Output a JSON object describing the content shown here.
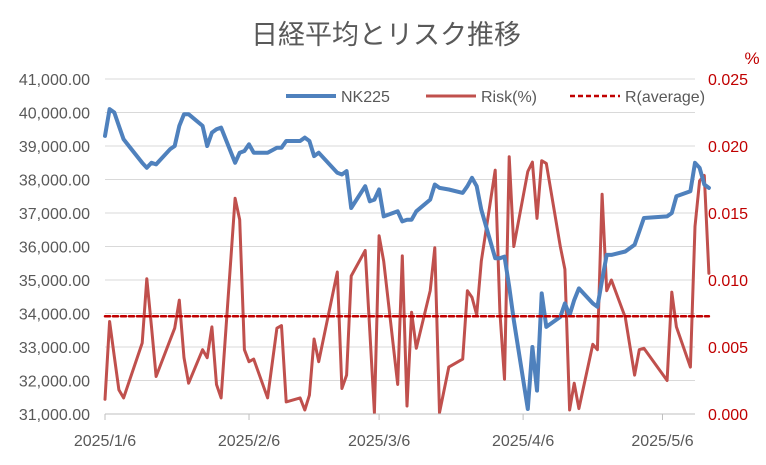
{
  "chart_data": {
    "type": "line",
    "title": "日経平均とリスク推移",
    "right_axis_unit": "%",
    "x_tick_labels": [
      "2025/1/6",
      "2025/2/6",
      "2025/3/6",
      "2025/4/6",
      "2025/5/6"
    ],
    "x_tick_dates": [
      "2025-01-06",
      "2025-02-06",
      "2025-03-06",
      "2025-04-06",
      "2025-05-06"
    ],
    "x_range": [
      "2025-01-06",
      "2025-05-13"
    ],
    "left_axis": {
      "min": 31000,
      "max": 41000,
      "step": 1000,
      "tick_labels": [
        "31,000.00",
        "32,000.00",
        "33,000.00",
        "34,000.00",
        "35,000.00",
        "36,000.00",
        "37,000.00",
        "38,000.00",
        "39,000.00",
        "40,000.00",
        "41,000.00"
      ]
    },
    "right_axis": {
      "min": 0,
      "max": 0.025,
      "step": 0.005,
      "tick_labels": [
        "0.000",
        "0.005",
        "0.010",
        "0.015",
        "0.020",
        "0.025"
      ]
    },
    "gridlines": true,
    "legend_position": "top-right",
    "colors": {
      "nk225": "#4f81bd",
      "risk": "#c0504d",
      "average": "#c00000",
      "right_axis": "#c00000"
    },
    "series": [
      {
        "name": "NK225",
        "axis": "left",
        "points": [
          [
            "2025-01-06",
            39300
          ],
          [
            "2025-01-07",
            40100
          ],
          [
            "2025-01-08",
            40000
          ],
          [
            "2025-01-09",
            39600
          ],
          [
            "2025-01-10",
            39200
          ],
          [
            "2025-01-14",
            38500
          ],
          [
            "2025-01-15",
            38350
          ],
          [
            "2025-01-16",
            38500
          ],
          [
            "2025-01-17",
            38450
          ],
          [
            "2025-01-20",
            38900
          ],
          [
            "2025-01-21",
            39000
          ],
          [
            "2025-01-22",
            39600
          ],
          [
            "2025-01-23",
            39950
          ],
          [
            "2025-01-24",
            39950
          ],
          [
            "2025-01-27",
            39600
          ],
          [
            "2025-01-28",
            39000
          ],
          [
            "2025-01-29",
            39400
          ],
          [
            "2025-01-30",
            39500
          ],
          [
            "2025-01-31",
            39550
          ],
          [
            "2025-02-03",
            38500
          ],
          [
            "2025-02-04",
            38800
          ],
          [
            "2025-02-05",
            38850
          ],
          [
            "2025-02-06",
            39050
          ],
          [
            "2025-02-07",
            38800
          ],
          [
            "2025-02-10",
            38800
          ],
          [
            "2025-02-12",
            38950
          ],
          [
            "2025-02-13",
            38950
          ],
          [
            "2025-02-14",
            39150
          ],
          [
            "2025-02-17",
            39150
          ],
          [
            "2025-02-18",
            39250
          ],
          [
            "2025-02-19",
            39150
          ],
          [
            "2025-02-20",
            38700
          ],
          [
            "2025-02-21",
            38800
          ],
          [
            "2025-02-25",
            38200
          ],
          [
            "2025-02-26",
            38150
          ],
          [
            "2025-02-27",
            38250
          ],
          [
            "2025-02-28",
            37150
          ],
          [
            "2025-03-03",
            37800
          ],
          [
            "2025-03-04",
            37350
          ],
          [
            "2025-03-05",
            37400
          ],
          [
            "2025-03-06",
            37700
          ],
          [
            "2025-03-07",
            36900
          ],
          [
            "2025-03-10",
            37050
          ],
          [
            "2025-03-11",
            36750
          ],
          [
            "2025-03-12",
            36800
          ],
          [
            "2025-03-13",
            36800
          ],
          [
            "2025-03-14",
            37050
          ],
          [
            "2025-03-17",
            37400
          ],
          [
            "2025-03-18",
            37850
          ],
          [
            "2025-03-19",
            37750
          ],
          [
            "2025-03-21",
            37700
          ],
          [
            "2025-03-24",
            37600
          ],
          [
            "2025-03-25",
            37800
          ],
          [
            "2025-03-26",
            38050
          ],
          [
            "2025-03-27",
            37800
          ],
          [
            "2025-03-28",
            37100
          ],
          [
            "2025-03-31",
            35650
          ],
          [
            "2025-04-01",
            35650
          ],
          [
            "2025-04-02",
            35700
          ],
          [
            "2025-04-03",
            34800
          ],
          [
            "2025-04-04",
            33800
          ],
          [
            "2025-04-07",
            31150
          ],
          [
            "2025-04-08",
            33000
          ],
          [
            "2025-04-09",
            31700
          ],
          [
            "2025-04-10",
            34600
          ],
          [
            "2025-04-11",
            33600
          ],
          [
            "2025-04-14",
            33900
          ],
          [
            "2025-04-15",
            34300
          ],
          [
            "2025-04-16",
            33950
          ],
          [
            "2025-04-17",
            34400
          ],
          [
            "2025-04-18",
            34750
          ],
          [
            "2025-04-21",
            34300
          ],
          [
            "2025-04-22",
            34200
          ],
          [
            "2025-04-23",
            35000
          ],
          [
            "2025-04-24",
            35750
          ],
          [
            "2025-04-25",
            35750
          ],
          [
            "2025-04-28",
            35850
          ],
          [
            "2025-04-30",
            36050
          ],
          [
            "2025-05-01",
            36450
          ],
          [
            "2025-05-02",
            36850
          ],
          [
            "2025-05-07",
            36900
          ],
          [
            "2025-05-08",
            37000
          ],
          [
            "2025-05-09",
            37500
          ],
          [
            "2025-05-12",
            37650
          ],
          [
            "2025-05-13",
            38500
          ],
          [
            "2025-05-14",
            38350
          ],
          [
            "2025-05-15",
            37850
          ],
          [
            "2025-05-16",
            37750
          ]
        ]
      },
      {
        "name": "Risk(%)",
        "axis": "right",
        "points": [
          [
            "2025-01-06",
            0.0011
          ],
          [
            "2025-01-07",
            0.0069
          ],
          [
            "2025-01-08",
            0.0043
          ],
          [
            "2025-01-09",
            0.0018
          ],
          [
            "2025-01-10",
            0.0012
          ],
          [
            "2025-01-14",
            0.0053
          ],
          [
            "2025-01-15",
            0.0101
          ],
          [
            "2025-01-16",
            0.0065
          ],
          [
            "2025-01-17",
            0.0028
          ],
          [
            "2025-01-20",
            0.0055
          ],
          [
            "2025-01-21",
            0.0064
          ],
          [
            "2025-01-22",
            0.0085
          ],
          [
            "2025-01-23",
            0.0042
          ],
          [
            "2025-01-24",
            0.0023
          ],
          [
            "2025-01-27",
            0.0048
          ],
          [
            "2025-01-28",
            0.0042
          ],
          [
            "2025-01-29",
            0.0065
          ],
          [
            "2025-01-30",
            0.0022
          ],
          [
            "2025-01-31",
            0.0012
          ],
          [
            "2025-02-03",
            0.0161
          ],
          [
            "2025-02-04",
            0.0145
          ],
          [
            "2025-02-05",
            0.0048
          ],
          [
            "2025-02-06",
            0.0039
          ],
          [
            "2025-02-07",
            0.0041
          ],
          [
            "2025-02-10",
            0.0012
          ],
          [
            "2025-02-12",
            0.0064
          ],
          [
            "2025-02-13",
            0.0066
          ],
          [
            "2025-02-14",
            0.0009
          ],
          [
            "2025-02-17",
            0.0012
          ],
          [
            "2025-02-18",
            0.0003
          ],
          [
            "2025-02-19",
            0.0014
          ],
          [
            "2025-02-20",
            0.0056
          ],
          [
            "2025-02-21",
            0.0039
          ],
          [
            "2025-02-25",
            0.0106
          ],
          [
            "2025-02-26",
            0.0019
          ],
          [
            "2025-02-27",
            0.0029
          ],
          [
            "2025-02-28",
            0.0103
          ],
          [
            "2025-03-03",
            0.0122
          ],
          [
            "2025-03-04",
            0.0062
          ],
          [
            "2025-03-05",
            0.0001
          ],
          [
            "2025-03-06",
            0.0133
          ],
          [
            "2025-03-07",
            0.0114
          ],
          [
            "2025-03-10",
            0.0022
          ],
          [
            "2025-03-11",
            0.0118
          ],
          [
            "2025-03-12",
            0.0006
          ],
          [
            "2025-03-13",
            0.0076
          ],
          [
            "2025-03-14",
            0.0049
          ],
          [
            "2025-03-17",
            0.0092
          ],
          [
            "2025-03-18",
            0.0124
          ],
          [
            "2025-03-19",
            0.0001
          ],
          [
            "2025-03-21",
            0.0035
          ],
          [
            "2025-03-24",
            0.0041
          ],
          [
            "2025-03-25",
            0.0092
          ],
          [
            "2025-03-26",
            0.0087
          ],
          [
            "2025-03-27",
            0.0074
          ],
          [
            "2025-03-28",
            0.0114
          ],
          [
            "2025-03-31",
            0.0182
          ],
          [
            "2025-04-01",
            0.0076
          ],
          [
            "2025-04-02",
            0.0026
          ],
          [
            "2025-04-03",
            0.0192
          ],
          [
            "2025-04-04",
            0.0125
          ],
          [
            "2025-04-07",
            0.0181
          ],
          [
            "2025-04-08",
            0.0188
          ],
          [
            "2025-04-09",
            0.0146
          ],
          [
            "2025-04-10",
            0.0189
          ],
          [
            "2025-04-11",
            0.0187
          ],
          [
            "2025-04-14",
            0.0125
          ],
          [
            "2025-04-15",
            0.0108
          ],
          [
            "2025-04-16",
            0.0003
          ],
          [
            "2025-04-17",
            0.0023
          ],
          [
            "2025-04-18",
            0.0004
          ],
          [
            "2025-04-21",
            0.0052
          ],
          [
            "2025-04-22",
            0.0048
          ],
          [
            "2025-04-23",
            0.0164
          ],
          [
            "2025-04-24",
            0.0092
          ],
          [
            "2025-04-25",
            0.01
          ],
          [
            "2025-04-28",
            0.0072
          ],
          [
            "2025-04-30",
            0.0029
          ],
          [
            "2025-05-01",
            0.0048
          ],
          [
            "2025-05-02",
            0.0049
          ],
          [
            "2025-05-07",
            0.0025
          ],
          [
            "2025-05-08",
            0.0091
          ],
          [
            "2025-05-09",
            0.0065
          ],
          [
            "2025-05-12",
            0.0035
          ],
          [
            "2025-05-13",
            0.014
          ],
          [
            "2025-05-14",
            0.0174
          ],
          [
            "2025-05-15",
            0.0178
          ],
          [
            "2025-05-16",
            0.0105
          ]
        ]
      },
      {
        "name": "R(average)",
        "axis": "right",
        "style": "dashed",
        "points": [
          [
            "2025-01-06",
            0.0073
          ],
          [
            "2025-05-16",
            0.0073
          ]
        ]
      }
    ]
  }
}
